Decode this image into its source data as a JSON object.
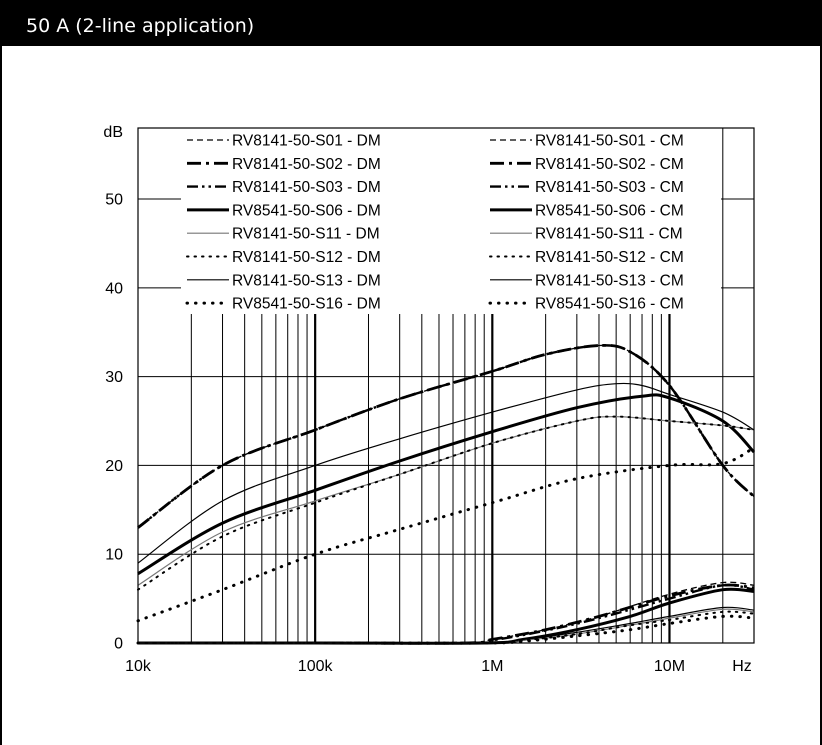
{
  "header": {
    "title": "50 A (2-line application)"
  },
  "chart_data": {
    "type": "line",
    "title": "",
    "xlabel": "Hz",
    "ylabel": "dB",
    "x_scale": "log",
    "xlim": [
      10000,
      30000000
    ],
    "ylim": [
      0,
      58
    ],
    "grid": true,
    "legend_position": "top",
    "x_ticks": [
      {
        "value": 10000,
        "label": "10k"
      },
      {
        "value": 100000,
        "label": "100k"
      },
      {
        "value": 1000000,
        "label": "1M"
      },
      {
        "value": 10000000,
        "label": "10M"
      }
    ],
    "y_ticks": [
      0,
      10,
      20,
      30,
      40,
      50
    ],
    "series": [
      {
        "name": "RV8141-50-S01 - DM",
        "style": "dash",
        "x": [
          10000,
          30000,
          100000,
          300000,
          1000000,
          2000000,
          4000000,
          6000000,
          10000000,
          20000000,
          30000000
        ],
        "y": [
          13,
          20,
          24,
          27.5,
          30.6,
          32.5,
          33.5,
          32.8,
          29,
          20,
          16.5
        ]
      },
      {
        "name": "RV8141-50-S02 - DM",
        "style": "dashdot",
        "x": [
          10000,
          30000,
          100000,
          300000,
          1000000,
          2000000,
          4000000,
          6000000,
          10000000,
          20000000,
          30000000
        ],
        "y": [
          13,
          20,
          24,
          27.5,
          30.6,
          32.5,
          33.5,
          32.8,
          29,
          20,
          16.5
        ]
      },
      {
        "name": "RV8141-50-S03 - DM",
        "style": "dashdotdot",
        "x": [
          10000,
          30000,
          100000,
          300000,
          1000000,
          2000000,
          4000000,
          6000000,
          10000000,
          20000000,
          30000000
        ],
        "y": [
          13,
          20,
          24,
          27.5,
          30.6,
          32.5,
          33.5,
          32.8,
          29,
          20,
          16.5
        ]
      },
      {
        "name": "RV8541-50-S06 - DM",
        "style": "thick",
        "x": [
          10000,
          30000,
          100000,
          300000,
          1000000,
          3000000,
          7000000,
          10000000,
          20000000,
          30000000
        ],
        "y": [
          7.8,
          13.5,
          17.2,
          20.5,
          23.8,
          26.5,
          27.8,
          27.6,
          25,
          21.5
        ]
      },
      {
        "name": "RV8141-50-S11 - DM",
        "style": "thin-gray",
        "x": [
          10000,
          30000,
          100000,
          300000,
          1000000,
          3000000,
          5000000,
          10000000,
          20000000,
          30000000
        ],
        "y": [
          6.5,
          12.5,
          16,
          19,
          22.5,
          25,
          25.5,
          25,
          24.5,
          24
        ]
      },
      {
        "name": "RV8141-50-S12 - DM",
        "style": "dot",
        "x": [
          10000,
          30000,
          100000,
          300000,
          1000000,
          3000000,
          5000000,
          10000000,
          20000000,
          30000000
        ],
        "y": [
          6,
          12,
          15.8,
          19,
          22.5,
          25,
          25.5,
          25,
          24.5,
          24
        ]
      },
      {
        "name": "RV8141-50-S13 - DM",
        "style": "thin",
        "x": [
          10000,
          30000,
          100000,
          300000,
          1000000,
          3000000,
          5000000,
          7000000,
          10000000,
          20000000,
          30000000
        ],
        "y": [
          9,
          16,
          20,
          23,
          26,
          28.5,
          29.2,
          29,
          28,
          26,
          24
        ]
      },
      {
        "name": "RV8541-50-S16 - DM",
        "style": "dot-thick",
        "x": [
          10000,
          30000,
          100000,
          300000,
          1000000,
          3000000,
          10000000,
          20000000,
          30000000
        ],
        "y": [
          2.5,
          6,
          10,
          12.8,
          15.8,
          18.5,
          20,
          20.2,
          22
        ]
      },
      {
        "name": "RV8141-50-S01 - CM",
        "style": "dash",
        "x": [
          10000,
          100000,
          700000,
          1000000,
          2000000,
          4000000,
          10000000,
          20000000,
          30000000
        ],
        "y": [
          0,
          0,
          0,
          0.4,
          1.5,
          3,
          5.5,
          6.8,
          6.5
        ]
      },
      {
        "name": "RV8141-50-S02 - CM",
        "style": "dashdot",
        "x": [
          10000,
          100000,
          700000,
          1000000,
          2000000,
          4000000,
          10000000,
          20000000,
          30000000
        ],
        "y": [
          0,
          0,
          0,
          0.4,
          1.5,
          3,
          5.3,
          6.5,
          6.2
        ]
      },
      {
        "name": "RV8141-50-S03 - CM",
        "style": "dashdotdot",
        "x": [
          10000,
          100000,
          700000,
          1000000,
          2000000,
          4000000,
          10000000,
          20000000,
          30000000
        ],
        "y": [
          0,
          0,
          0,
          0.3,
          1.4,
          2.8,
          5,
          6.5,
          6
        ]
      },
      {
        "name": "RV8541-50-S06 - CM",
        "style": "thick",
        "x": [
          10000,
          100000,
          900000,
          1500000,
          3000000,
          6000000,
          10000000,
          20000000,
          30000000
        ],
        "y": [
          0,
          0,
          0,
          0.4,
          1.5,
          3,
          4.5,
          6,
          5.8
        ]
      },
      {
        "name": "RV8141-50-S11 - CM",
        "style": "thin-gray",
        "x": [
          10000,
          100000,
          900000,
          1500000,
          3000000,
          6000000,
          10000000,
          20000000,
          30000000
        ],
        "y": [
          0,
          0,
          0,
          0.3,
          1,
          2,
          2.8,
          3.8,
          3.5
        ]
      },
      {
        "name": "RV8141-50-S12 - CM",
        "style": "dot",
        "x": [
          10000,
          100000,
          900000,
          1500000,
          3000000,
          6000000,
          10000000,
          20000000,
          30000000
        ],
        "y": [
          0,
          0,
          0,
          0.3,
          1,
          2,
          2.6,
          3.5,
          3.3
        ]
      },
      {
        "name": "RV8141-50-S13 - CM",
        "style": "thin",
        "x": [
          10000,
          100000,
          900000,
          1500000,
          3000000,
          6000000,
          10000000,
          20000000,
          30000000
        ],
        "y": [
          0,
          0,
          0,
          0.4,
          1.2,
          2.2,
          3,
          4,
          3.7
        ]
      },
      {
        "name": "RV8541-50-S16 - CM",
        "style": "dot-thick",
        "x": [
          10000,
          100000,
          900000,
          1500000,
          3000000,
          6000000,
          10000000,
          20000000,
          30000000
        ],
        "y": [
          0,
          0,
          0,
          0.2,
          0.8,
          1.5,
          2.2,
          3,
          2.8
        ]
      }
    ]
  }
}
